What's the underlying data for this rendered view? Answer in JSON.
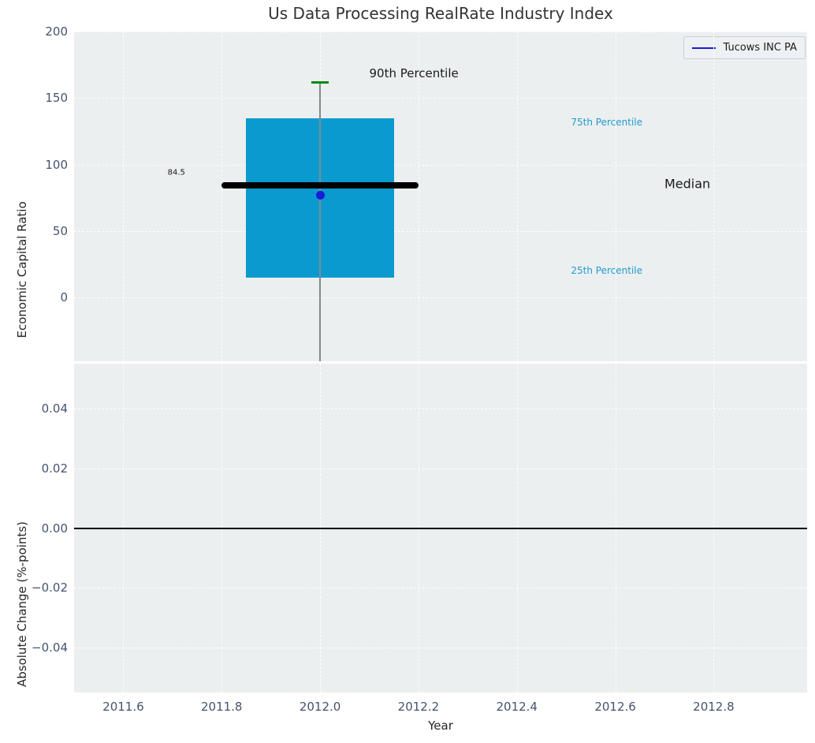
{
  "colors": {
    "box_fill": "#0a9ad0",
    "median_line": "#000000",
    "whisker": "#818a8f",
    "p90_cap": "#0b8a0b",
    "company_point": "#1a1ad8",
    "legend_line": "#1a1ad8",
    "panel_bg": "#ebeff0",
    "grid_line": "#ffffff",
    "tick_label": "#44536e",
    "zero_line": "#000000",
    "percentile_text": "#229bcd"
  },
  "chart_data": {
    "type": "box",
    "title": "Us Data Processing RealRate Industry Index",
    "xlabel": "Year",
    "xlim": [
      2011.5,
      2012.99
    ],
    "xticks": [
      2011.6,
      2011.8,
      2012.0,
      2012.2,
      2012.4,
      2012.6,
      2012.8
    ],
    "grid": "white dashed on light panel background",
    "legend": {
      "label": "Tucows INC PA",
      "position": "top-right"
    },
    "panels": [
      {
        "ylabel": "Economic Capital Ratio",
        "ylim": [
          -48,
          200
        ],
        "yticks": [
          0,
          50,
          100,
          150,
          200
        ],
        "box": {
          "x_center": 2012.0,
          "x_left": 2011.85,
          "x_right": 2012.15,
          "q1": 15,
          "median": 84.5,
          "q3": 135,
          "p90_cap": 162,
          "median_x_left": 2011.8,
          "median_x_right": 2012.2,
          "whisker_top": 162,
          "whisker_bottom_clipped": true
        },
        "company_point": {
          "x": 2012.0,
          "y": 77,
          "series": "Tucows INC PA"
        },
        "annotations": [
          {
            "text": "90th Percentile",
            "x": 2012.1,
            "y": 168.5,
            "size": 15,
            "color": "#1a1a1a"
          },
          {
            "text": "75th Percentile",
            "x": 2012.51,
            "y": 132,
            "size": 12,
            "color": "#229bcd"
          },
          {
            "text": "Median",
            "x": 2012.7,
            "y": 85.5,
            "size": 16,
            "color": "#1a1a1a"
          },
          {
            "text": "25th Percentile",
            "x": 2012.51,
            "y": 20,
            "size": 12,
            "color": "#229bcd"
          },
          {
            "text": "84.5",
            "x": 2011.69,
            "y": 94,
            "size": 10,
            "color": "#1a1a1a"
          }
        ]
      },
      {
        "ylabel": "Absolute Change (%-points)",
        "ylim": [
          -0.055,
          0.055
        ],
        "yticks": [
          -0.04,
          -0.02,
          0.0,
          0.02,
          0.04
        ],
        "zero_line_y": 0.0,
        "series": [
          {
            "name": "Tucows INC PA",
            "values": []
          }
        ]
      }
    ]
  }
}
